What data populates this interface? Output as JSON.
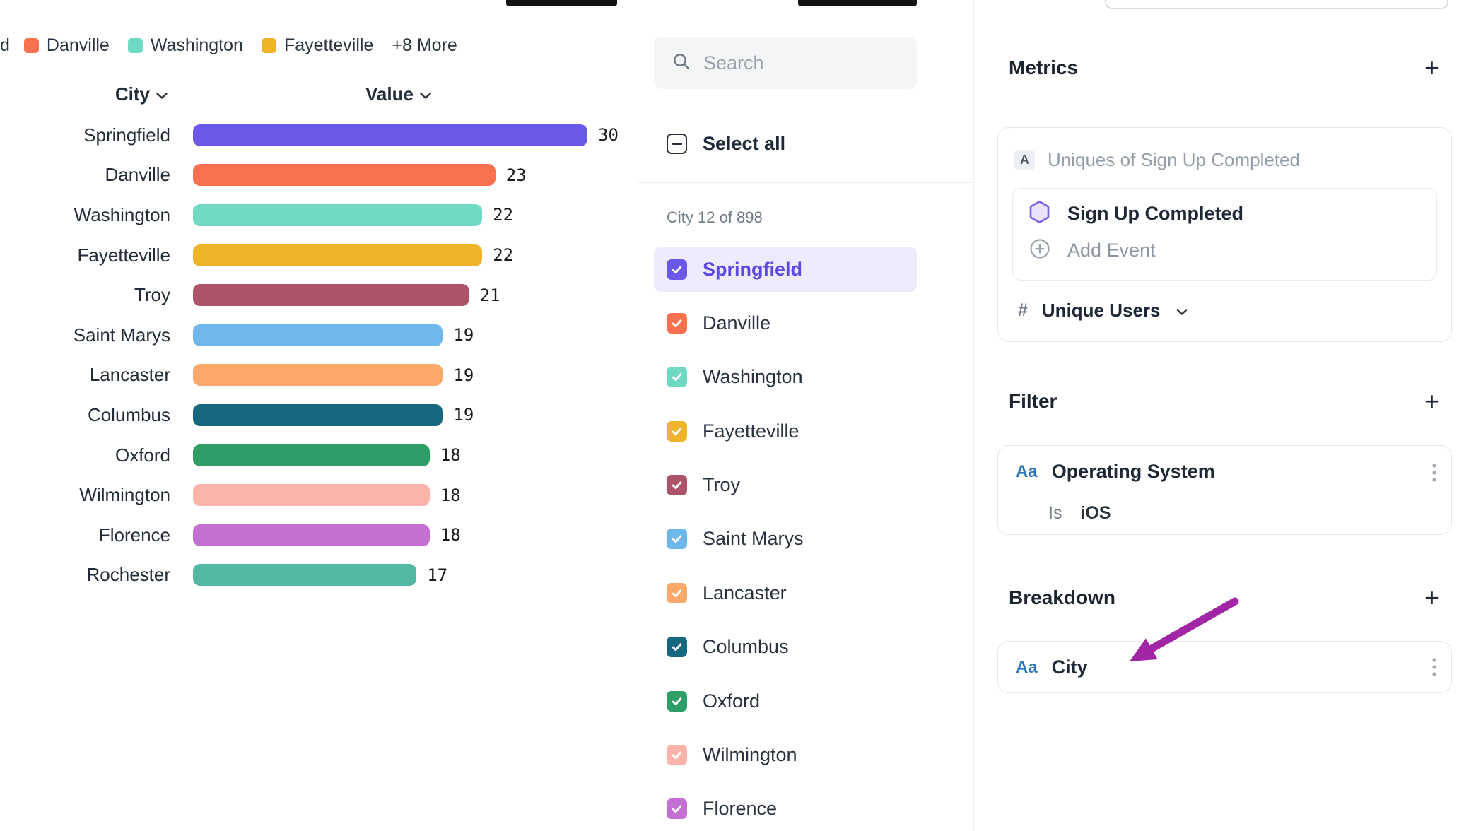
{
  "legend": {
    "cut_label": "d",
    "items": [
      {
        "label": "Danville",
        "color": "#F9714F"
      },
      {
        "label": "Washington",
        "color": "#6FD9C3"
      },
      {
        "label": "Fayetteville",
        "color": "#F0B42B"
      }
    ],
    "more_label": "+8 More"
  },
  "chart": {
    "columns": {
      "city": "City",
      "value": "Value"
    },
    "rows": [
      {
        "city": "Springfield",
        "value": 30,
        "color": "#6A58E8"
      },
      {
        "city": "Danville",
        "value": 23,
        "color": "#F9714F"
      },
      {
        "city": "Washington",
        "value": 22,
        "color": "#6FD9C3"
      },
      {
        "city": "Fayetteville",
        "value": 22,
        "color": "#F0B42B"
      },
      {
        "city": "Troy",
        "value": 21,
        "color": "#AE5468"
      },
      {
        "city": "Saint Marys",
        "value": 19,
        "color": "#6EB7EC"
      },
      {
        "city": "Lancaster",
        "value": 19,
        "color": "#FAA96A"
      },
      {
        "city": "Columbus",
        "value": 19,
        "color": "#15687F"
      },
      {
        "city": "Oxford",
        "value": 18,
        "color": "#2D9E66"
      },
      {
        "city": "Wilmington",
        "value": 18,
        "color": "#FBB3AA"
      },
      {
        "city": "Florence",
        "value": 18,
        "color": "#C470D2"
      },
      {
        "city": "Rochester",
        "value": 17,
        "color": "#53B8A3"
      }
    ]
  },
  "list_panel": {
    "search_placeholder": "Search",
    "select_all_label": "Select all",
    "count_label": "City 12 of 898",
    "items": [
      {
        "label": "Springfield",
        "color": "#6A58E8",
        "highlighted": true
      },
      {
        "label": "Danville",
        "color": "#F9714F"
      },
      {
        "label": "Washington",
        "color": "#6FD9C3"
      },
      {
        "label": "Fayetteville",
        "color": "#F0B42B"
      },
      {
        "label": "Troy",
        "color": "#AE5468"
      },
      {
        "label": "Saint Marys",
        "color": "#6EB7EC"
      },
      {
        "label": "Lancaster",
        "color": "#FAA96A"
      },
      {
        "label": "Columbus",
        "color": "#15687F"
      },
      {
        "label": "Oxford",
        "color": "#2D9E66"
      },
      {
        "label": "Wilmington",
        "color": "#FBB3AA"
      },
      {
        "label": "Florence",
        "color": "#C470D2"
      }
    ]
  },
  "right_panel": {
    "metrics": {
      "title": "Metrics",
      "add_icon": "+",
      "badge": "A",
      "metric_label": "Uniques of Sign Up Completed",
      "event_name": "Sign Up Completed",
      "add_event_label": "Add Event",
      "measure_prefix": "#",
      "measure_label": "Unique Users"
    },
    "filter": {
      "title": "Filter",
      "add_icon": "+",
      "type_badge": "Aa",
      "property": "Operating System",
      "operator": "Is",
      "value": "iOS"
    },
    "breakdown": {
      "title": "Breakdown",
      "add_icon": "+",
      "type_badge": "Aa",
      "property": "City"
    }
  },
  "chart_data": {
    "type": "bar",
    "orientation": "horizontal",
    "title": "",
    "xlabel": "Value",
    "ylabel": "City",
    "xlim": [
      0,
      32
    ],
    "categories": [
      "Springfield",
      "Danville",
      "Washington",
      "Fayetteville",
      "Troy",
      "Saint Marys",
      "Lancaster",
      "Columbus",
      "Oxford",
      "Wilmington",
      "Florence",
      "Rochester"
    ],
    "values": [
      30,
      23,
      22,
      22,
      21,
      19,
      19,
      19,
      18,
      18,
      18,
      17
    ],
    "colors": [
      "#6A58E8",
      "#F9714F",
      "#6FD9C3",
      "#F0B42B",
      "#AE5468",
      "#6EB7EC",
      "#FAA96A",
      "#15687F",
      "#2D9E66",
      "#FBB3AA",
      "#C470D2",
      "#53B8A3"
    ]
  }
}
